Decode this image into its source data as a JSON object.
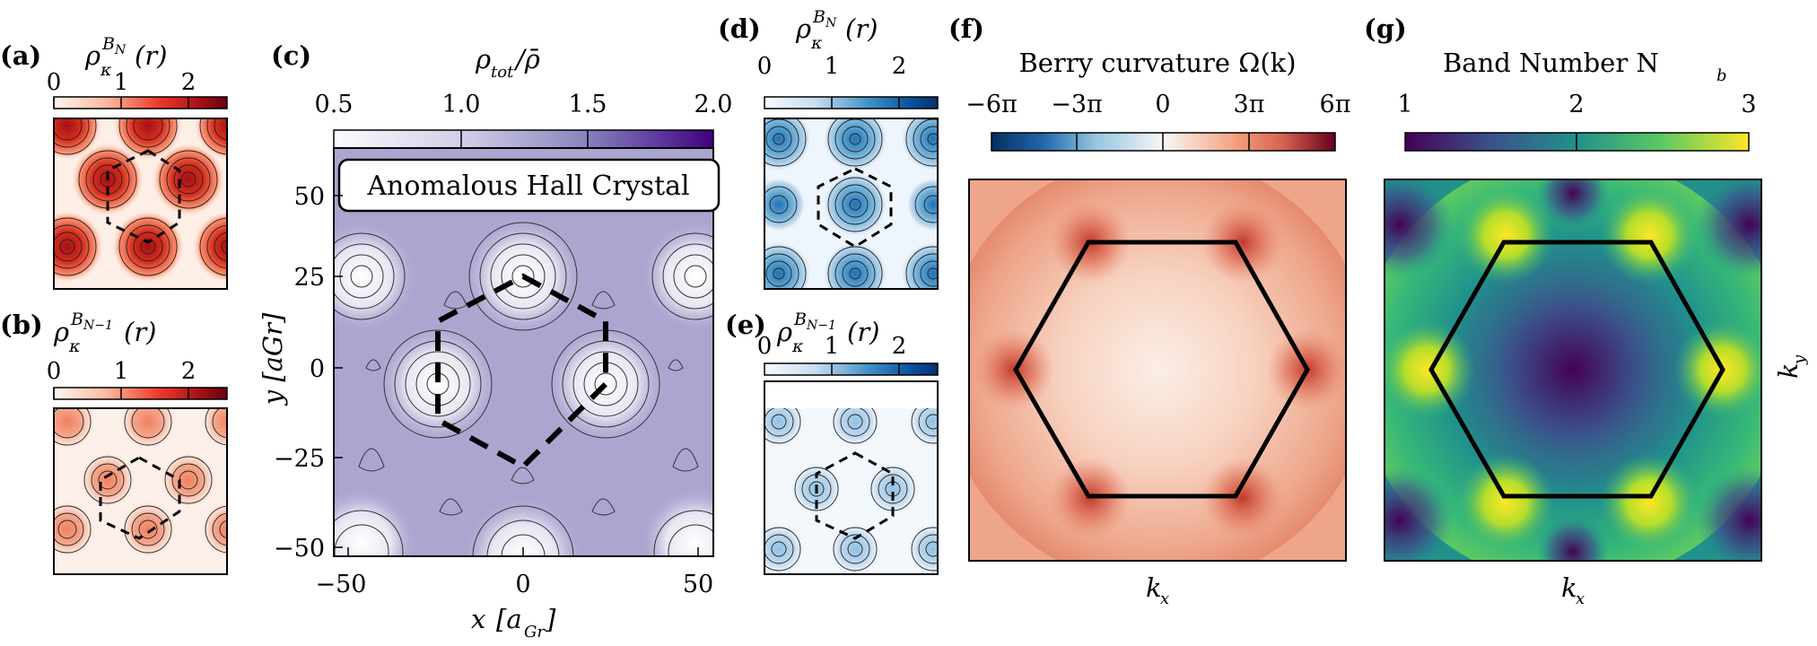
{
  "panels": {
    "a": {
      "label": "(a)",
      "title_base": "ρ",
      "title_sub": "κ",
      "title_sup": "B",
      "title_sup_sub": "N",
      "title_arg": "(r)",
      "ticks": [
        "0",
        "1",
        "2"
      ],
      "colormap": "reds",
      "vmin": 0,
      "vmax": 2.5
    },
    "b": {
      "label": "(b)",
      "title_base": "ρ",
      "title_sub": "κ",
      "title_sup": "B",
      "title_sup_sub": "N−1",
      "title_arg": "(r)",
      "ticks": [
        "0",
        "1",
        "2"
      ],
      "colormap": "reds",
      "vmin": 0,
      "vmax": 2.5
    },
    "c": {
      "label": "(c)",
      "colorbar_title": "ρtot/ρ̄",
      "colorbar_title_main": "ρ",
      "colorbar_title_sub": "tot",
      "colorbar_title_den": "/ρ̄",
      "ticks": [
        "0.5",
        "1.0",
        "1.5",
        "2.0"
      ],
      "legend": "Anomalous Hall Crystal",
      "xlabel_main": "x",
      "xlabel_unit": "[a",
      "xlabel_unit_sub": "Gr",
      "xlabel_unit_end": "]",
      "ylabel": "y [aGr]",
      "xticks": [
        "−50",
        "0",
        "50"
      ],
      "yticks": [
        "50",
        "25",
        "0",
        "−25",
        "−50"
      ],
      "xlim": [
        -52,
        52
      ],
      "ylim": [
        -52,
        62
      ]
    },
    "d": {
      "label": "(d)",
      "title_base": "ρ",
      "title_sub": "κ",
      "title_sup": "B",
      "title_sup_sub": "N",
      "title_arg": "(r)",
      "ticks": [
        "0",
        "1",
        "2"
      ],
      "colormap": "blues"
    },
    "e": {
      "label": "(e)",
      "title_base": "ρ",
      "title_sub": "κ",
      "title_sup": "B",
      "title_sup_sub": "N−1",
      "title_arg": "(r)",
      "ticks": [
        "0",
        "1",
        "2"
      ],
      "colormap": "blues"
    },
    "f": {
      "label": "(f)",
      "colorbar_title": "Berry curvature Ω(k)",
      "ticks": [
        "−6π",
        "−3π",
        "0",
        "3π",
        "6π"
      ],
      "xlabel_main": "k",
      "xlabel_sub": "x",
      "colormap": "RdBu_r"
    },
    "g": {
      "label": "(g)",
      "colorbar_title_main": "Band Number N",
      "colorbar_title_sub": "b",
      "ticks": [
        "1",
        "2",
        "3"
      ],
      "xlabel_main": "k",
      "xlabel_sub": "x",
      "ylabel_main": "k",
      "ylabel_sub": "y",
      "colormap": "viridis"
    }
  },
  "colors": {
    "reds_dark": "#b2182b",
    "blues_dark": "#2166ac",
    "purple_dark": "#3f007d",
    "viridis_low": "#440154",
    "viridis_high": "#fde725"
  }
}
